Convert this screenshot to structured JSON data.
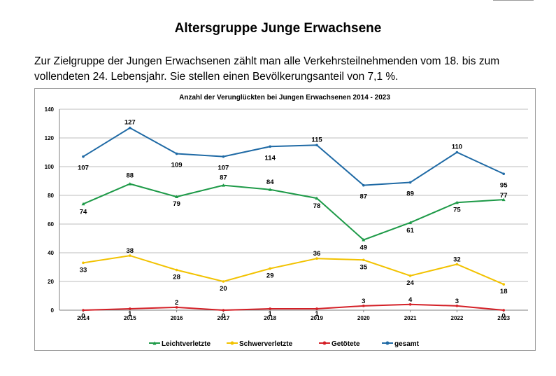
{
  "page": {
    "heading": "Altersgruppe Junge Erwachsene",
    "intro_line1": "Zur Zielgruppe der Jungen Erwachsenen zählt man alle Verkehrsteilnehmenden vom 18. bis zum",
    "intro_line2": "vollendeten 24. Lebensjahr. Sie stellen einen Bevölkerungsanteil von 7,1 %."
  },
  "chart_data": {
    "type": "line",
    "title": "Anzahl der Verunglückten bei Jungen Erwachsenen 2014 - 2023",
    "xlabel": "",
    "ylabel": "",
    "categories": [
      "2014",
      "2015",
      "2016",
      "2017",
      "2018",
      "2019",
      "2020",
      "2021",
      "2022",
      "2023"
    ],
    "ylim": [
      0,
      140
    ],
    "yticks": [
      0,
      20,
      40,
      60,
      80,
      100,
      120,
      140
    ],
    "grid": true,
    "legend_position": "bottom",
    "series": [
      {
        "name": "Leichtverletzte",
        "color": "#1e9a48",
        "marker": "triangle",
        "values": [
          74,
          88,
          79,
          87,
          84,
          78,
          49,
          61,
          75,
          77
        ]
      },
      {
        "name": "Schwerverletzte",
        "color": "#f2c200",
        "marker": "circle",
        "values": [
          33,
          38,
          28,
          20,
          29,
          36,
          35,
          24,
          32,
          18
        ]
      },
      {
        "name": "Getötete",
        "color": "#d42027",
        "marker": "circle",
        "values": [
          0,
          1,
          2,
          0,
          1,
          1,
          3,
          4,
          3,
          0
        ]
      },
      {
        "name": "gesamt",
        "color": "#1f6aa5",
        "marker": "circle",
        "values": [
          107,
          127,
          109,
          107,
          114,
          115,
          87,
          89,
          110,
          95
        ]
      }
    ]
  }
}
